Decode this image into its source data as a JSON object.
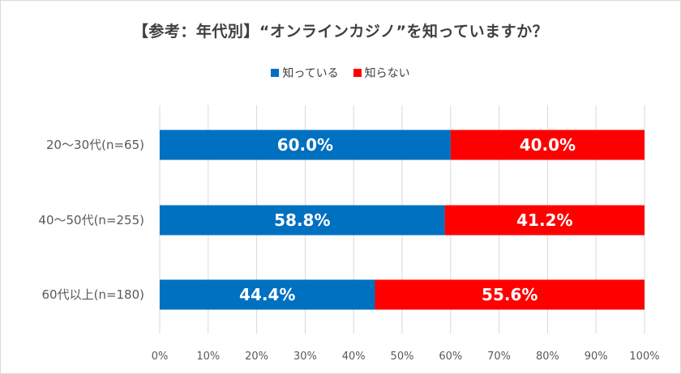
{
  "chart_data": {
    "type": "bar",
    "orientation": "horizontal",
    "stacked": true,
    "title": "【参考：年代別】“オンラインカジノ”を知っていますか？",
    "categories": [
      "20～30代(n=65)",
      "40～50代(n=255)",
      "60代以上(n=180)"
    ],
    "series": [
      {
        "name": "知っている",
        "values": [
          60.0,
          58.8,
          44.4
        ],
        "labels": [
          "60.0%",
          "58.8%",
          "44.4%"
        ],
        "color": "#0070c0"
      },
      {
        "name": "知らない",
        "values": [
          40.0,
          41.2,
          55.6
        ],
        "labels": [
          "40.0%",
          "41.2%",
          "55.6%"
        ],
        "color": "#ff0000"
      }
    ],
    "xlim": [
      0,
      100
    ],
    "xticks": [
      "0%",
      "10%",
      "20%",
      "30%",
      "40%",
      "50%",
      "60%",
      "70%",
      "80%",
      "90%",
      "100%"
    ],
    "grid": true,
    "legend": "top-center"
  }
}
